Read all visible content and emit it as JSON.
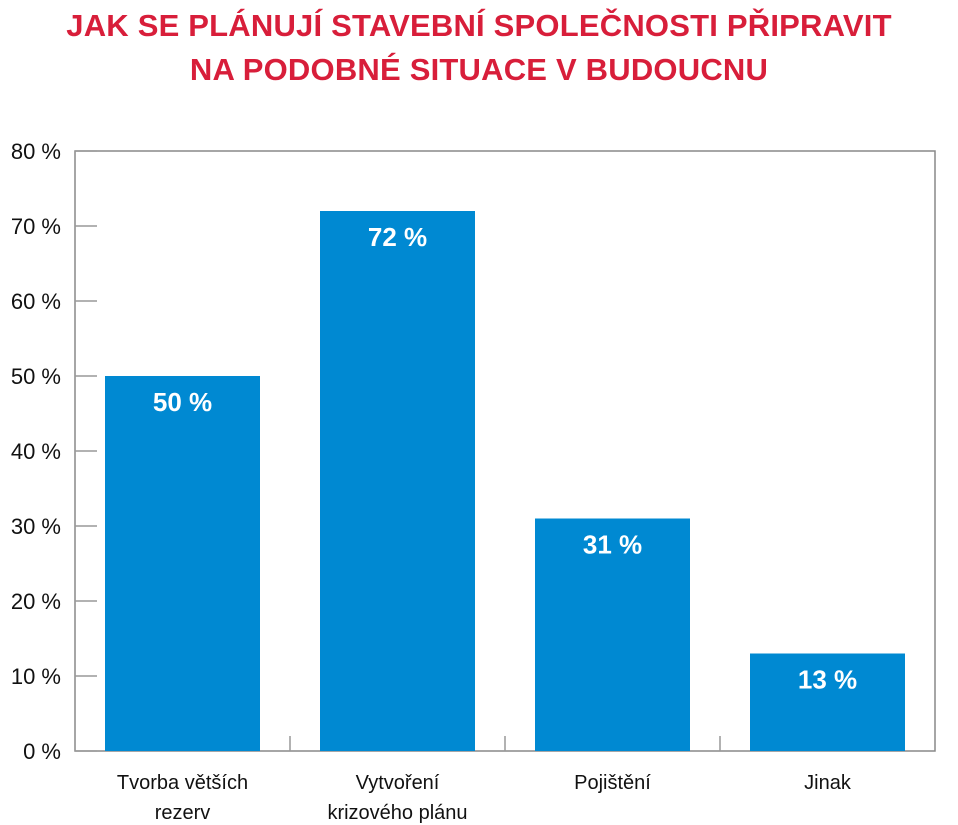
{
  "chart_data": {
    "type": "bar",
    "title_lines": [
      "JAK SE PLÁNUJÍ STAVEBNÍ SPOLEČNOSTI PŘIPRAVIT",
      "NA PODOBNÉ SITUACE V BUDOUCNU"
    ],
    "categories": [
      [
        "Tvorba větších",
        "rezerv"
      ],
      [
        "Vytvoření",
        "krizového plánu"
      ],
      [
        "Pojištění"
      ],
      [
        "Jinak"
      ]
    ],
    "values": [
      50,
      72,
      31,
      13
    ],
    "data_labels": [
      "50 %",
      "72 %",
      "31 %",
      "13 %"
    ],
    "yticks": [
      0,
      10,
      20,
      30,
      40,
      50,
      60,
      70,
      80
    ],
    "ytick_labels": [
      "0 %",
      "10 %",
      "20 %",
      "30 %",
      "40 %",
      "50 %",
      "60 %",
      "70 %",
      "80 %"
    ],
    "ylim": [
      0,
      80
    ],
    "xlabel": "",
    "ylabel": "",
    "colors": {
      "bar": "#0089d2",
      "title": "#d81e3a",
      "axis": "#777777"
    }
  }
}
